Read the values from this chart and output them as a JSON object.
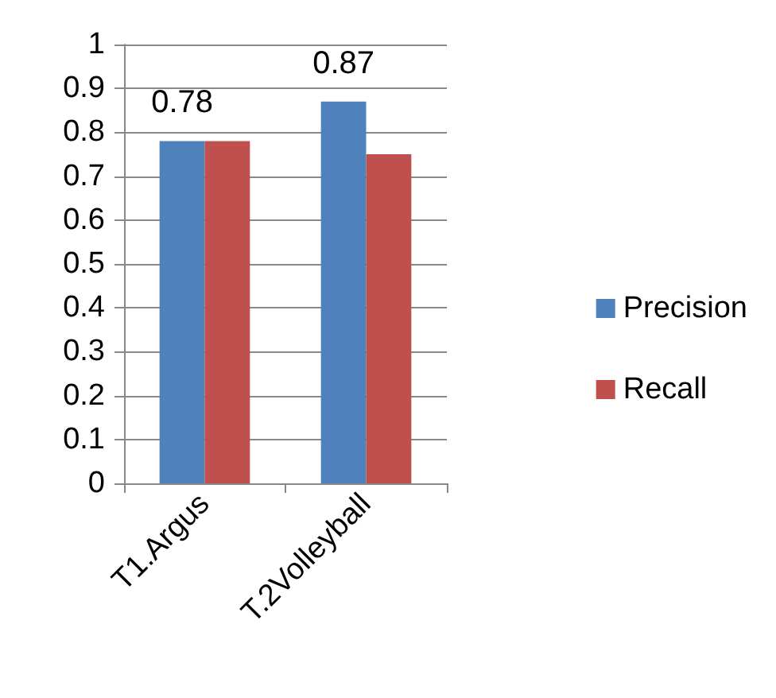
{
  "chart_data": {
    "type": "bar",
    "categories": [
      "T1.Argus",
      "T.2Volleyball"
    ],
    "series": [
      {
        "name": "Precision",
        "color": "#4f81bd",
        "values": [
          0.78,
          0.87
        ],
        "value_labels": [
          "0.78",
          "0.87"
        ]
      },
      {
        "name": "Recall",
        "color": "#c0504d",
        "values": [
          0.78,
          0.75
        ]
      }
    ],
    "ylim": [
      0,
      1
    ],
    "yticks": [
      0,
      0.1,
      0.2,
      0.3,
      0.4,
      0.5,
      0.6,
      0.7,
      0.8,
      0.9,
      1
    ],
    "grid": "y",
    "legend": "right"
  }
}
